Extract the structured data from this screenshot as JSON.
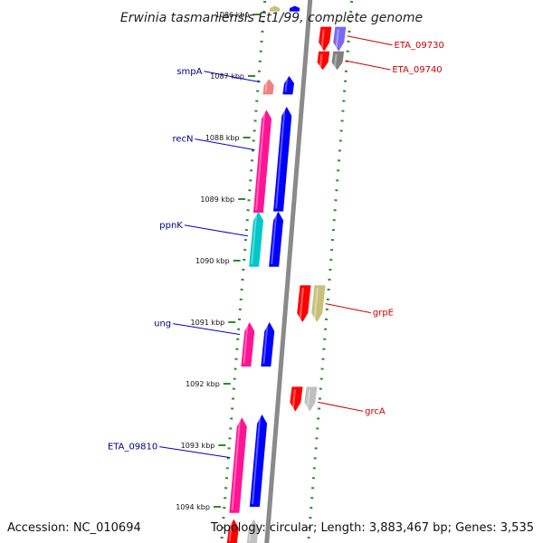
{
  "title": "Erwinia tasmaniensis Et1/99, complete genome",
  "footer": {
    "accession": "Accession: NC_010694",
    "summary": "Topology: circular; Length: 3,883,467 bp; Genes: 3,535"
  },
  "ticks": [
    {
      "label": "1086 kbp",
      "value": 1086
    },
    {
      "label": "1087 kbp",
      "value": 1087
    },
    {
      "label": "1088 kbp",
      "value": 1088
    },
    {
      "label": "1089 kbp",
      "value": 1089
    },
    {
      "label": "1090 kbp",
      "value": 1090
    },
    {
      "label": "1091 kbp",
      "value": 1091
    },
    {
      "label": "1092 kbp",
      "value": 1092
    },
    {
      "label": "1093 kbp",
      "value": 1093
    },
    {
      "label": "1094 kbp",
      "value": 1094
    }
  ],
  "genes_forward": [
    {
      "start": 1085.86,
      "end": 1085.95,
      "color": "#c8c07a"
    },
    {
      "start": 1087.05,
      "end": 1087.3,
      "color": "#f08080"
    },
    {
      "start": 1087.55,
      "end": 1089.22,
      "color": "#ff1493"
    },
    {
      "start": 1089.2,
      "end": 1090.1,
      "color": "#00c8c8"
    },
    {
      "start": 1091.0,
      "end": 1091.72,
      "color": "#ff1493"
    },
    {
      "start": 1092.55,
      "end": 1094.1,
      "color": "#ff1493"
    },
    {
      "start": 1094.2,
      "end": 1094.6,
      "color": "#ff0000"
    }
  ],
  "genes_forward_strand2": [
    {
      "start": 1085.86,
      "end": 1085.95,
      "color": "#0000ff"
    },
    {
      "start": 1087.0,
      "end": 1087.3,
      "color": "#0000ff"
    },
    {
      "start": 1087.5,
      "end": 1089.2,
      "color": "#0000ff"
    },
    {
      "start": 1089.2,
      "end": 1090.1,
      "color": "#0000ff"
    },
    {
      "start": 1091.0,
      "end": 1091.72,
      "color": "#0000ff"
    },
    {
      "start": 1092.5,
      "end": 1094.0,
      "color": "#0000ff"
    },
    {
      "start": 1094.2,
      "end": 1094.6,
      "color": "#c0c0c0"
    }
  ],
  "genes_reverse": [
    {
      "start": 1086.2,
      "end": 1086.6,
      "color": "#ff0000"
    },
    {
      "start": 1086.6,
      "end": 1086.9,
      "color": "#ff0000"
    },
    {
      "start": 1090.4,
      "end": 1091.0,
      "color": "#ff0000"
    },
    {
      "start": 1092.05,
      "end": 1092.45,
      "color": "#ff0000"
    }
  ],
  "genes_reverse_strand2": [
    {
      "start": 1086.2,
      "end": 1086.6,
      "color": "#7b68ee"
    },
    {
      "start": 1086.6,
      "end": 1086.9,
      "color": "#808080"
    },
    {
      "start": 1090.4,
      "end": 1091.0,
      "color": "#c8c07a"
    },
    {
      "start": 1092.05,
      "end": 1092.45,
      "color": "#c0c0c0"
    }
  ],
  "labels_left": [
    {
      "text": "smpA",
      "target": 1087.1,
      "color": "#00008b"
    },
    {
      "text": "recN",
      "target": 1088.2,
      "color": "#00008b"
    },
    {
      "text": "ppnK",
      "target": 1089.6,
      "color": "#00008b"
    },
    {
      "text": "ung",
      "target": 1091.2,
      "color": "#00008b"
    },
    {
      "text": "ETA_09810",
      "target": 1093.2,
      "color": "#00008b"
    }
  ],
  "labels_right": [
    {
      "text": "ETA_09730",
      "target": 1086.35,
      "color": "#cc0000"
    },
    {
      "text": "ETA_09740",
      "target": 1086.75,
      "color": "#cc0000"
    },
    {
      "text": "grpE",
      "target": 1090.7,
      "color": "#cc0000"
    },
    {
      "text": "grcA",
      "target": 1092.3,
      "color": "#cc0000"
    }
  ]
}
